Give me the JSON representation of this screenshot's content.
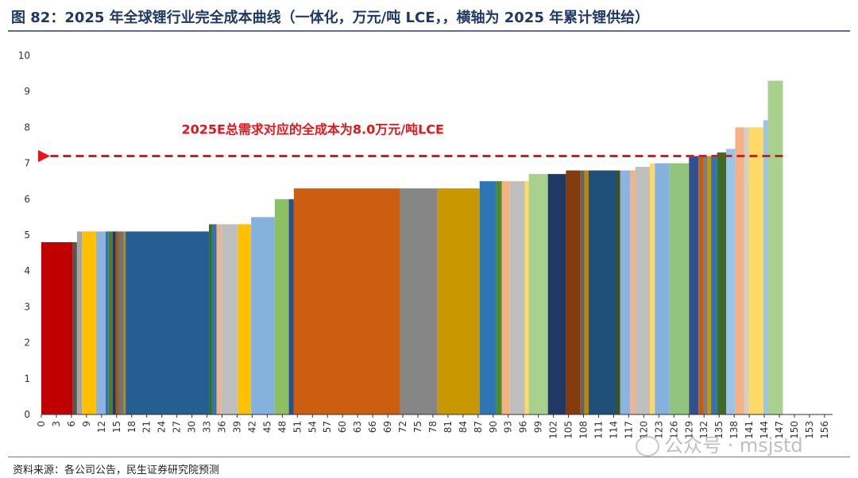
{
  "header": {
    "title": "图 82：2025 年全球锂行业完全成本曲线（一体化，万元/吨 LCE，，横轴为 2025 年累计锂供给）"
  },
  "footer": {
    "source": "资料来源：各公司公告，民生证券研究院预测",
    "watermark": "公众号 · msjstd"
  },
  "chart_data": {
    "type": "bar",
    "subtype": "cost-curve (variable-width bars)",
    "title": "",
    "xlabel": "",
    "ylabel": "",
    "ylim": [
      0,
      10
    ],
    "yticks": [
      0,
      1,
      2,
      3,
      4,
      5,
      6,
      7,
      8,
      9,
      10
    ],
    "xlim": [
      0,
      157.6
    ],
    "xticks": [
      0,
      3,
      6,
      9,
      12,
      15,
      18,
      21,
      24,
      27,
      30,
      33,
      36,
      39,
      42,
      45,
      48,
      51,
      54,
      57,
      60,
      63,
      66,
      69,
      72,
      75,
      78,
      81,
      84,
      87,
      90,
      93,
      96,
      99,
      102,
      105,
      108,
      111,
      114,
      117,
      120,
      123,
      126,
      129,
      132,
      135,
      138,
      141,
      144,
      147,
      150,
      153,
      156
    ],
    "grid": false,
    "annotation": {
      "text": "2025E总需求对应的全成本为8.0万元/吨LCE",
      "y": 7.2,
      "x_from": 0,
      "x_to": 147.7,
      "color": "#e8141a"
    },
    "bars": [
      {
        "x0": 0.0,
        "x1": 6.3,
        "value": 4.8,
        "color": "#c00000"
      },
      {
        "x0": 6.3,
        "x1": 7.1,
        "value": 4.8,
        "color": "#555555"
      },
      {
        "x0": 7.1,
        "x1": 8.1,
        "value": 5.1,
        "color": "#a5a5a5"
      },
      {
        "x0": 8.1,
        "x1": 10.9,
        "value": 5.1,
        "color": "#ffc000"
      },
      {
        "x0": 10.9,
        "x1": 12.8,
        "value": 5.1,
        "color": "#8db3e2"
      },
      {
        "x0": 12.8,
        "x1": 13.4,
        "value": 5.1,
        "color": "#2e75b6"
      },
      {
        "x0": 13.4,
        "x1": 14.2,
        "value": 5.1,
        "color": "#4e7a2b"
      },
      {
        "x0": 14.2,
        "x1": 14.8,
        "value": 5.1,
        "color": "#1f3864"
      },
      {
        "x0": 14.8,
        "x1": 15.5,
        "value": 5.1,
        "color": "#9c5a1c"
      },
      {
        "x0": 15.5,
        "x1": 16.3,
        "value": 5.1,
        "color": "#737373"
      },
      {
        "x0": 16.3,
        "x1": 16.8,
        "value": 5.1,
        "color": "#b8860b"
      },
      {
        "x0": 16.8,
        "x1": 33.4,
        "value": 5.1,
        "color": "#255e91"
      },
      {
        "x0": 33.4,
        "x1": 34.0,
        "value": 5.3,
        "color": "#2f6f1f"
      },
      {
        "x0": 34.0,
        "x1": 34.9,
        "value": 5.3,
        "color": "#2e75b6"
      },
      {
        "x0": 34.9,
        "x1": 35.8,
        "value": 5.3,
        "color": "#f4b183"
      },
      {
        "x0": 35.8,
        "x1": 39.1,
        "value": 5.3,
        "color": "#bfbfbf"
      },
      {
        "x0": 39.1,
        "x1": 41.8,
        "value": 5.3,
        "color": "#ffc000"
      },
      {
        "x0": 41.8,
        "x1": 46.5,
        "value": 5.5,
        "color": "#85b1df"
      },
      {
        "x0": 46.5,
        "x1": 49.3,
        "value": 6.0,
        "color": "#8dc063"
      },
      {
        "x0": 49.3,
        "x1": 50.3,
        "value": 6.0,
        "color": "#2c4f8f"
      },
      {
        "x0": 50.3,
        "x1": 71.5,
        "value": 6.3,
        "color": "#cc5e12"
      },
      {
        "x0": 71.5,
        "x1": 78.9,
        "value": 6.3,
        "color": "#868686"
      },
      {
        "x0": 78.9,
        "x1": 87.3,
        "value": 6.3,
        "color": "#c99700"
      },
      {
        "x0": 87.3,
        "x1": 90.6,
        "value": 6.5,
        "color": "#2e75b6"
      },
      {
        "x0": 90.6,
        "x1": 91.7,
        "value": 6.5,
        "color": "#4e8c2a"
      },
      {
        "x0": 91.7,
        "x1": 93.3,
        "value": 6.5,
        "color": "#f4b183"
      },
      {
        "x0": 93.3,
        "x1": 96.3,
        "value": 6.5,
        "color": "#bfbfbf"
      },
      {
        "x0": 96.3,
        "x1": 97.1,
        "value": 6.5,
        "color": "#ffd966"
      },
      {
        "x0": 97.1,
        "x1": 100.9,
        "value": 6.7,
        "color": "#a9d18e"
      },
      {
        "x0": 100.9,
        "x1": 104.5,
        "value": 6.7,
        "color": "#1f3864"
      },
      {
        "x0": 104.5,
        "x1": 107.4,
        "value": 6.8,
        "color": "#843c0c"
      },
      {
        "x0": 107.4,
        "x1": 108.2,
        "value": 6.8,
        "color": "#636363"
      },
      {
        "x0": 108.2,
        "x1": 109.0,
        "value": 6.8,
        "color": "#b8860b"
      },
      {
        "x0": 109.0,
        "x1": 114.4,
        "value": 6.8,
        "color": "#1f4e79"
      },
      {
        "x0": 114.4,
        "x1": 115.3,
        "value": 6.8,
        "color": "#375623"
      },
      {
        "x0": 115.3,
        "x1": 117.3,
        "value": 6.8,
        "color": "#8db3e2"
      },
      {
        "x0": 117.3,
        "x1": 118.3,
        "value": 6.8,
        "color": "#f4b183"
      },
      {
        "x0": 118.3,
        "x1": 121.2,
        "value": 6.9,
        "color": "#bfbfbf"
      },
      {
        "x0": 121.2,
        "x1": 122.2,
        "value": 7.0,
        "color": "#ffd966"
      },
      {
        "x0": 122.2,
        "x1": 125.1,
        "value": 7.0,
        "color": "#85b1df"
      },
      {
        "x0": 125.1,
        "x1": 129.0,
        "value": 7.0,
        "color": "#93c47d"
      },
      {
        "x0": 129.0,
        "x1": 130.9,
        "value": 7.2,
        "color": "#2f4f8f"
      },
      {
        "x0": 130.9,
        "x1": 131.9,
        "value": 7.2,
        "color": "#c55a11"
      },
      {
        "x0": 131.9,
        "x1": 132.7,
        "value": 7.2,
        "color": "#7f7f7f"
      },
      {
        "x0": 132.7,
        "x1": 133.4,
        "value": 7.2,
        "color": "#c99700"
      },
      {
        "x0": 133.4,
        "x1": 134.6,
        "value": 7.2,
        "color": "#2e75b6"
      },
      {
        "x0": 134.6,
        "x1": 136.4,
        "value": 7.3,
        "color": "#3d6b23"
      },
      {
        "x0": 136.4,
        "x1": 138.2,
        "value": 7.4,
        "color": "#9dc3e6"
      },
      {
        "x0": 138.2,
        "x1": 140.0,
        "value": 8.0,
        "color": "#f4b183"
      },
      {
        "x0": 140.0,
        "x1": 140.9,
        "value": 8.0,
        "color": "#d0cece"
      },
      {
        "x0": 140.9,
        "x1": 143.8,
        "value": 8.0,
        "color": "#ffd966"
      },
      {
        "x0": 143.8,
        "x1": 144.7,
        "value": 8.2,
        "color": "#9dc3e6"
      },
      {
        "x0": 144.7,
        "x1": 147.7,
        "value": 9.3,
        "color": "#a9d18e"
      }
    ]
  }
}
